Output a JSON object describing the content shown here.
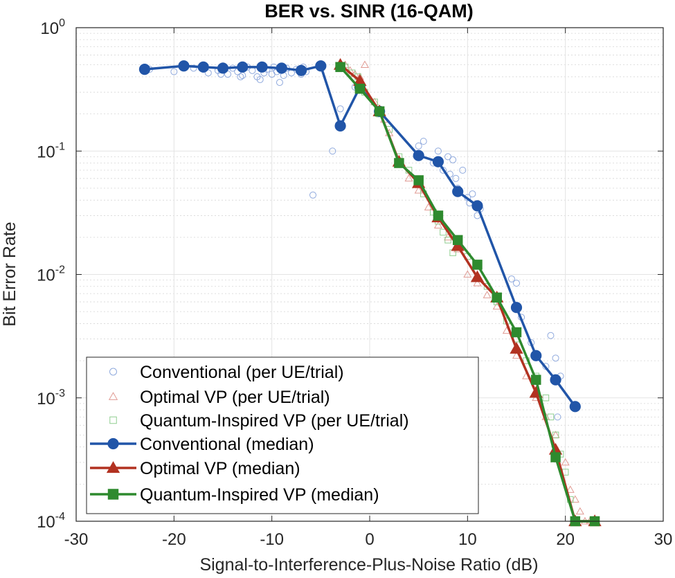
{
  "chart_data": {
    "type": "scatter",
    "title": "BER vs. SINR (16-QAM)",
    "xlabel": "Signal-to-Interference-Plus-Noise Ratio (dB)",
    "ylabel": "Bit Error Rate",
    "xlim": [
      -30,
      30
    ],
    "ylim": [
      0.0001,
      1
    ],
    "yscale": "log",
    "grid": true,
    "legend_position": "bottom-left",
    "x_ticks": [
      "-30",
      "-20",
      "-10",
      "0",
      "10",
      "20",
      "30"
    ],
    "x_tick_values": [
      -30,
      -20,
      -10,
      0,
      10,
      20,
      30
    ],
    "y_ticks": [
      {
        "base": "10",
        "exp": "-4",
        "value": 0.0001
      },
      {
        "base": "10",
        "exp": "-3",
        "value": 0.001
      },
      {
        "base": "10",
        "exp": "-2",
        "value": 0.01
      },
      {
        "base": "10",
        "exp": "-1",
        "value": 0.1
      },
      {
        "base": "10",
        "exp": "0",
        "value": 1
      }
    ],
    "colors": {
      "conventional": "#2155a8",
      "optimal": "#b23221",
      "quantum": "#2e8a2e",
      "conventional_scatter": "#8fa9dd",
      "optimal_scatter": "#e09a92",
      "quantum_scatter": "#8fce8f"
    },
    "series": [
      {
        "name": "Conventional (per UE/trial)",
        "kind": "scatter",
        "marker": "circle",
        "color_key": "conventional_scatter",
        "x": [
          -22.5,
          -20,
          -19,
          -18,
          -17,
          -16.5,
          -15.5,
          -15,
          -14.5,
          -14,
          -13.5,
          -13,
          -12.5,
          -12,
          -11.5,
          -11,
          -10.8,
          -10.5,
          -10,
          -9.8,
          -9.5,
          -9,
          -8.8,
          -8.5,
          -8,
          -7.5,
          -7,
          -6.8,
          -6.5,
          -9.2,
          -11.2,
          -13.2,
          -15.2,
          -5.8,
          -3.8,
          -3,
          -1.5,
          5,
          5.5,
          6.5,
          7,
          7.5,
          8,
          8.2,
          8.5,
          8.8,
          9,
          9.5,
          10,
          10.2,
          10.5,
          11,
          11.3,
          14.5,
          15,
          15.5,
          16.5,
          17,
          18,
          18.5,
          19,
          19.5,
          19.2
        ],
        "y": [
          0.46,
          0.44,
          0.49,
          0.47,
          0.46,
          0.43,
          0.45,
          0.49,
          0.42,
          0.47,
          0.44,
          0.41,
          0.48,
          0.45,
          0.4,
          0.47,
          0.43,
          0.46,
          0.42,
          0.48,
          0.44,
          0.45,
          0.41,
          0.47,
          0.43,
          0.46,
          0.42,
          0.48,
          0.44,
          0.36,
          0.38,
          0.4,
          0.42,
          0.044,
          0.1,
          0.22,
          0.33,
          0.11,
          0.12,
          0.08,
          0.1,
          0.07,
          0.09,
          0.065,
          0.085,
          0.06,
          0.05,
          0.07,
          0.042,
          0.038,
          0.045,
          0.03,
          0.034,
          0.0092,
          0.0085,
          0.0045,
          0.0028,
          0.0022,
          0.0018,
          0.0032,
          0.0021,
          0.0015,
          0.0007
        ]
      },
      {
        "name": "Optimal VP (per UE/trial)",
        "kind": "scatter",
        "marker": "triangle",
        "color_key": "optimal_scatter",
        "x": [
          -2.5,
          -2,
          -1.5,
          -1,
          -0.5,
          0.5,
          1,
          1.5,
          2,
          3,
          4,
          5,
          6,
          7,
          8,
          9,
          10,
          11,
          12,
          13,
          14,
          15,
          16,
          17,
          18,
          19,
          20,
          20.5,
          21,
          21.5,
          22,
          22.5,
          23
        ],
        "y": [
          0.5,
          0.45,
          0.42,
          0.4,
          0.5,
          0.25,
          0.2,
          0.18,
          0.14,
          0.08,
          0.06,
          0.048,
          0.035,
          0.025,
          0.02,
          0.016,
          0.01,
          0.0085,
          0.0068,
          0.0055,
          0.0035,
          0.0022,
          0.0015,
          0.001,
          0.0007,
          0.0005,
          0.0003,
          0.00018,
          0.00015,
          0.00012,
          0.0001,
          0.0001,
          0.0001
        ]
      },
      {
        "name": "Quantum-Inspired VP (per UE/trial)",
        "kind": "scatter",
        "marker": "square",
        "color_key": "quantum_scatter",
        "x": [
          -2.5,
          -1.8,
          -1.2,
          -0.5,
          0.5,
          1,
          2,
          3,
          4,
          5,
          5.5,
          6.5,
          7,
          7.5,
          8,
          8.5,
          9,
          10,
          11,
          12,
          13,
          14,
          15,
          16,
          17,
          18,
          18.5,
          19,
          19.5,
          20,
          20.5,
          21
        ],
        "y": [
          0.48,
          0.43,
          0.4,
          0.3,
          0.25,
          0.2,
          0.15,
          0.09,
          0.07,
          0.055,
          0.045,
          0.032,
          0.027,
          0.022,
          0.019,
          0.015,
          0.017,
          0.014,
          0.012,
          0.008,
          0.006,
          0.0042,
          0.003,
          0.002,
          0.0015,
          0.001,
          0.0007,
          0.0005,
          0.00035,
          0.00025,
          0.00015,
          0.0001
        ]
      },
      {
        "name": "Conventional (median)",
        "kind": "line",
        "marker": "circle",
        "color_key": "conventional",
        "x": [
          -23,
          -19,
          -17,
          -15,
          -13,
          -11,
          -9,
          -7,
          -5,
          -3,
          -1,
          1,
          5,
          7,
          9,
          11,
          15,
          17,
          19,
          21
        ],
        "y": [
          0.46,
          0.49,
          0.48,
          0.47,
          0.48,
          0.48,
          0.47,
          0.45,
          0.49,
          0.16,
          0.33,
          0.21,
          0.092,
          0.082,
          0.047,
          0.036,
          0.0054,
          0.0022,
          0.0014,
          0.00085
        ]
      },
      {
        "name": "Optimal VP (median)",
        "kind": "line",
        "marker": "triangle",
        "color_key": "optimal",
        "x": [
          -3,
          -1,
          1,
          3,
          5,
          7,
          9,
          11,
          13,
          15,
          17,
          19,
          21,
          23
        ],
        "y": [
          0.5,
          0.37,
          0.21,
          0.082,
          0.055,
          0.029,
          0.017,
          0.0095,
          0.0065,
          0.0025,
          0.0011,
          0.00038,
          0.0001,
          0.0001
        ]
      },
      {
        "name": "Quantum-Inspired VP (median)",
        "kind": "line",
        "marker": "square",
        "color_key": "quantum",
        "x": [
          -3,
          -1,
          1,
          3,
          5,
          7,
          9,
          11,
          13,
          15,
          17,
          19,
          21,
          23
        ],
        "y": [
          0.48,
          0.32,
          0.21,
          0.08,
          0.058,
          0.03,
          0.019,
          0.012,
          0.0065,
          0.0034,
          0.0014,
          0.00033,
          0.0001,
          0.0001
        ]
      }
    ]
  }
}
